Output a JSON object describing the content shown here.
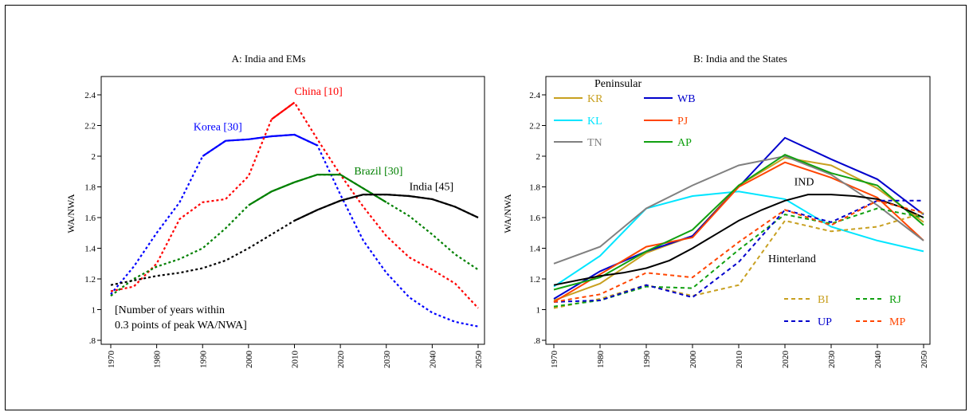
{
  "chart_data": [
    {
      "type": "line",
      "title": "A: India and EMs",
      "ylabel": "WA/NWA",
      "xlabel": "",
      "xlim": [
        1970,
        2050
      ],
      "ylim": [
        0.8,
        2.5
      ],
      "xticks": [
        "1970",
        "1980",
        "1990",
        "2000",
        "2010",
        "2020",
        "2030",
        "2040",
        "2050"
      ],
      "yticks": [
        0.8,
        1,
        1.2,
        1.4,
        1.6,
        1.8,
        2,
        2.2,
        2.4
      ],
      "yticklabels": [
        ".8",
        "1",
        "1.2",
        "1.4",
        "1.6",
        "1.8",
        "2",
        "2.2",
        "2.4"
      ],
      "grid": false,
      "series": [
        {
          "name": "Korea [30]",
          "color": "#0000ff",
          "x": [
            1970,
            1975,
            1980,
            1985,
            1990,
            1995,
            2000,
            2005,
            2010,
            2015,
            2020,
            2025,
            2030,
            2035,
            2040,
            2045,
            2050
          ],
          "y": [
            1.1,
            1.28,
            1.5,
            1.7,
            2.0,
            2.1,
            2.11,
            2.13,
            2.14,
            2.07,
            1.75,
            1.45,
            1.24,
            1.08,
            0.98,
            0.92,
            0.89
          ],
          "solid_from": 1990,
          "solid_to": 2015
        },
        {
          "name": "China [10]",
          "color": "#ff0000",
          "x": [
            1970,
            1975,
            1980,
            1985,
            1990,
            1995,
            2000,
            2005,
            2010,
            2015,
            2020,
            2025,
            2030,
            2035,
            2040,
            2045,
            2050
          ],
          "y": [
            1.12,
            1.15,
            1.3,
            1.59,
            1.7,
            1.72,
            1.87,
            2.24,
            2.35,
            2.11,
            1.88,
            1.67,
            1.48,
            1.34,
            1.26,
            1.17,
            1.01
          ],
          "solid_from": 2005,
          "solid_to": 2010
        },
        {
          "name": "Brazil [30]",
          "color": "#008000",
          "x": [
            1970,
            1975,
            1980,
            1985,
            1990,
            1995,
            2000,
            2005,
            2010,
            2015,
            2020,
            2025,
            2030,
            2035,
            2040,
            2045,
            2050
          ],
          "y": [
            1.09,
            1.2,
            1.28,
            1.33,
            1.4,
            1.53,
            1.68,
            1.77,
            1.83,
            1.88,
            1.88,
            1.79,
            1.7,
            1.61,
            1.49,
            1.36,
            1.26
          ],
          "solid_from": 2000,
          "solid_to": 2030
        },
        {
          "name": "India [45]",
          "color": "#000000",
          "x": [
            1970,
            1975,
            1980,
            1985,
            1990,
            1995,
            2000,
            2005,
            2010,
            2015,
            2020,
            2025,
            2030,
            2035,
            2040,
            2045,
            2050
          ],
          "y": [
            1.16,
            1.19,
            1.22,
            1.24,
            1.27,
            1.32,
            1.4,
            1.49,
            1.58,
            1.65,
            1.71,
            1.75,
            1.75,
            1.74,
            1.72,
            1.67,
            1.6
          ],
          "solid_from": 2010,
          "solid_to": 2050
        }
      ],
      "labels": [
        {
          "text": "Korea [30]",
          "color": "#0000ff",
          "x": 1988,
          "y": 2.17
        },
        {
          "text": "China [10]",
          "color": "#ff0000",
          "x": 2010,
          "y": 2.4
        },
        {
          "text": "Brazil [30]",
          "color": "#008000",
          "x": 2023,
          "y": 1.88
        },
        {
          "text": "India [45]",
          "color": "#000000",
          "x": 2035,
          "y": 1.78
        }
      ],
      "note": [
        "[Number of years within",
        "0.3 points of peak WA/NWA]"
      ]
    },
    {
      "type": "line",
      "title": "B: India and the States",
      "ylabel": "WA/NWA",
      "xlabel": "",
      "xlim": [
        1970,
        2050
      ],
      "ylim": [
        0.8,
        2.5
      ],
      "xticks": [
        "1970",
        "1980",
        "1990",
        "2000",
        "2010",
        "2020",
        "2030",
        "2040",
        "2050"
      ],
      "yticks": [
        0.8,
        1,
        1.2,
        1.4,
        1.6,
        1.8,
        2,
        2.2,
        2.4
      ],
      "yticklabels": [
        ".8",
        "1",
        "1.2",
        "1.4",
        "1.6",
        "1.8",
        "2",
        "2.2",
        "2.4"
      ],
      "grid": false,
      "legend_groups": [
        {
          "heading": "Peninsular",
          "items": [
            "KR",
            "WB",
            "KL",
            "PJ",
            "TN",
            "AP"
          ]
        },
        {
          "heading": "Hinterland",
          "items": [
            "BI",
            "RJ",
            "UP",
            "MP"
          ]
        }
      ],
      "series": [
        {
          "name": "KR",
          "color": "#c8a020",
          "dash": false,
          "x": [
            1970,
            1980,
            1990,
            2000,
            2010,
            2020,
            2030,
            2040,
            2050
          ],
          "y": [
            1.06,
            1.17,
            1.37,
            1.48,
            1.81,
            1.99,
            1.94,
            1.79,
            1.57
          ]
        },
        {
          "name": "WB",
          "color": "#0000cc",
          "dash": false,
          "x": [
            1970,
            1980,
            1990,
            2000,
            2010,
            2020,
            2030,
            2040,
            2050
          ],
          "y": [
            1.07,
            1.25,
            1.38,
            1.48,
            1.8,
            2.12,
            1.98,
            1.85,
            1.62
          ]
        },
        {
          "name": "KL",
          "color": "#00e5ff",
          "dash": false,
          "x": [
            1970,
            1980,
            1990,
            2000,
            2010,
            2020,
            2030,
            2040,
            2050
          ],
          "y": [
            1.15,
            1.35,
            1.66,
            1.74,
            1.77,
            1.72,
            1.54,
            1.45,
            1.38
          ]
        },
        {
          "name": "PJ",
          "color": "#ff4500",
          "dash": false,
          "x": [
            1970,
            1980,
            1990,
            2000,
            2010,
            2020,
            2030,
            2040,
            2050
          ],
          "y": [
            1.05,
            1.23,
            1.41,
            1.47,
            1.8,
            1.96,
            1.86,
            1.73,
            1.45
          ]
        },
        {
          "name": "TN",
          "color": "#808080",
          "dash": false,
          "x": [
            1970,
            1980,
            1990,
            2000,
            2010,
            2020,
            2030,
            2040,
            2050
          ],
          "y": [
            1.3,
            1.41,
            1.66,
            1.81,
            1.94,
            2.0,
            1.88,
            1.68,
            1.45
          ]
        },
        {
          "name": "AP",
          "color": "#10a010",
          "dash": false,
          "x": [
            1970,
            1980,
            1990,
            2000,
            2010,
            2020,
            2030,
            2040,
            2050
          ],
          "y": [
            1.13,
            1.21,
            1.38,
            1.52,
            1.81,
            2.01,
            1.89,
            1.81,
            1.55
          ]
        },
        {
          "name": "IND",
          "color": "#000000",
          "dash": false,
          "x": [
            1970,
            1975,
            1980,
            1985,
            1990,
            1995,
            2000,
            2005,
            2010,
            2015,
            2020,
            2025,
            2030,
            2035,
            2040,
            2045,
            2050
          ],
          "y": [
            1.16,
            1.19,
            1.22,
            1.24,
            1.27,
            1.32,
            1.4,
            1.49,
            1.58,
            1.65,
            1.71,
            1.75,
            1.75,
            1.74,
            1.72,
            1.67,
            1.6
          ]
        },
        {
          "name": "BI",
          "color": "#c8a020",
          "dash": true,
          "x": [
            1970,
            1980,
            1990,
            2000,
            2010,
            2020,
            2030,
            2040,
            2050
          ],
          "y": [
            1.01,
            1.07,
            1.16,
            1.09,
            1.16,
            1.58,
            1.51,
            1.54,
            1.63
          ]
        },
        {
          "name": "RJ",
          "color": "#10a010",
          "dash": true,
          "x": [
            1970,
            1980,
            1990,
            2000,
            2010,
            2020,
            2030,
            2040,
            2050
          ],
          "y": [
            1.02,
            1.06,
            1.15,
            1.14,
            1.39,
            1.62,
            1.56,
            1.66,
            1.6
          ]
        },
        {
          "name": "UP",
          "color": "#0000cc",
          "dash": true,
          "x": [
            1970,
            1980,
            1990,
            2000,
            2010,
            2020,
            2030,
            2040,
            2050
          ],
          "y": [
            1.05,
            1.06,
            1.16,
            1.08,
            1.31,
            1.65,
            1.57,
            1.71,
            1.71
          ]
        },
        {
          "name": "MP",
          "color": "#ff4500",
          "dash": true,
          "x": [
            1970,
            1980,
            1990,
            2000,
            2010,
            2020,
            2030,
            2040,
            2050
          ],
          "y": [
            1.05,
            1.1,
            1.24,
            1.21,
            1.44,
            1.65,
            1.55,
            1.71,
            1.63
          ]
        }
      ],
      "labels": [
        {
          "text": "IND",
          "color": "#000000",
          "x": 2022,
          "y": 1.81
        }
      ]
    }
  ]
}
